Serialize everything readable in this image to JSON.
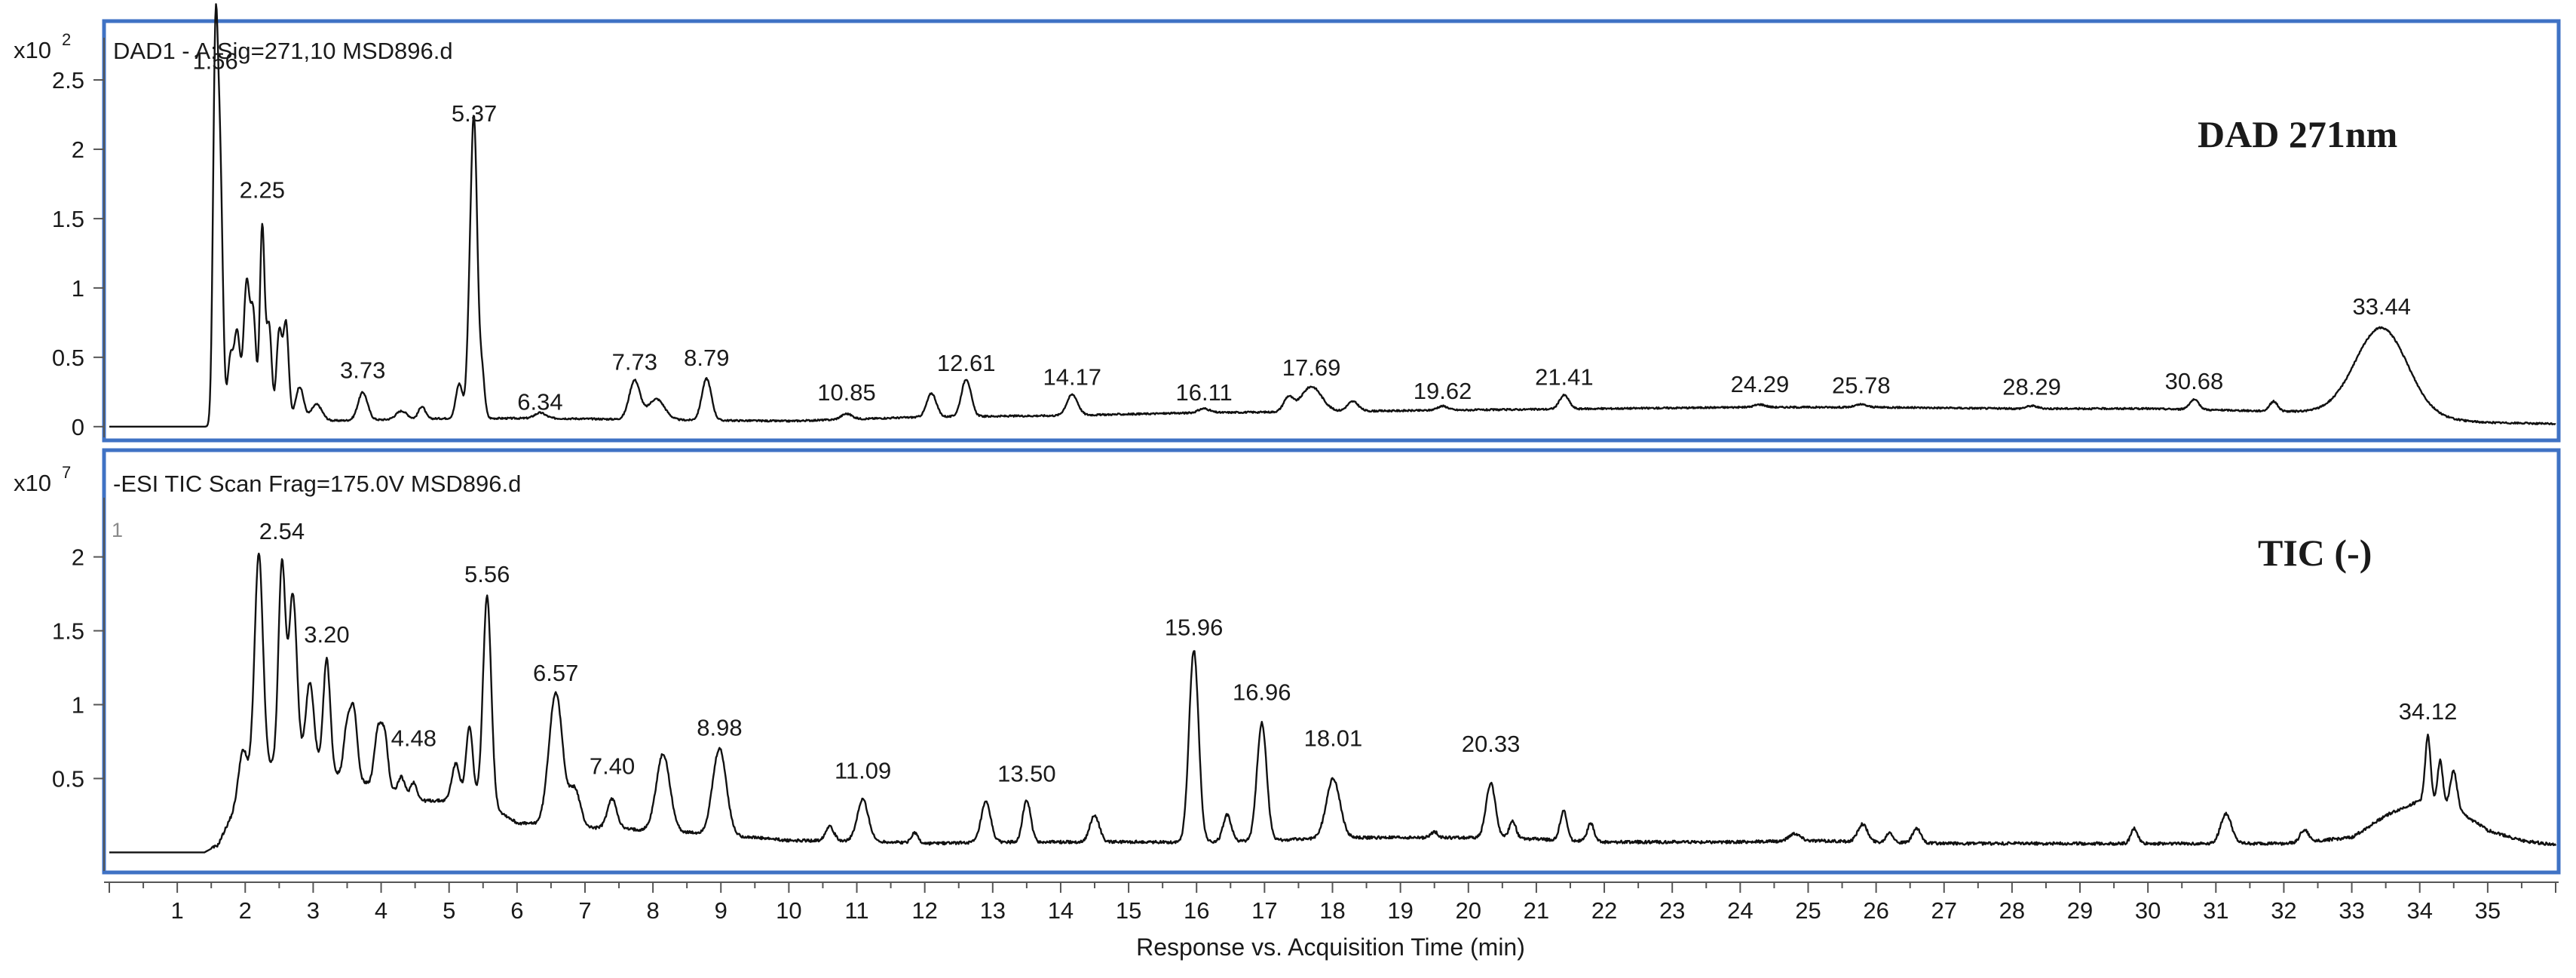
{
  "x_axis": {
    "label": "Response vs. Acquisition Time (min)",
    "range": [
      0,
      36
    ],
    "ticks": [
      1,
      2,
      3,
      4,
      5,
      6,
      7,
      8,
      9,
      10,
      11,
      12,
      13,
      14,
      15,
      16,
      17,
      18,
      19,
      20,
      21,
      22,
      23,
      24,
      25,
      26,
      27,
      28,
      29,
      30,
      31,
      32,
      33,
      34,
      35
    ]
  },
  "chart_data": [
    {
      "type": "line",
      "title": "DAD1 - A:Sig=271,10 MSD896.d",
      "annotation": "DAD 271nm",
      "y_multiplier_label": "x10",
      "y_exponent": "2",
      "ylim": [
        -0.05,
        2.75
      ],
      "y_ticks": [
        "0",
        "0.5",
        "1",
        "1.5",
        "2",
        "2.5"
      ],
      "y_tick_values": [
        0,
        0.5,
        1,
        1.5,
        2,
        2.5
      ],
      "baseline": [
        [
          0,
          0
        ],
        [
          1.45,
          0
        ],
        [
          1.6,
          0.02
        ],
        [
          3,
          0.04
        ],
        [
          5,
          0.06
        ],
        [
          6.5,
          0.06
        ],
        [
          8,
          0.05
        ],
        [
          10,
          0.04
        ],
        [
          12,
          0.07
        ],
        [
          14,
          0.08
        ],
        [
          16,
          0.1
        ],
        [
          18,
          0.11
        ],
        [
          20,
          0.12
        ],
        [
          22,
          0.13
        ],
        [
          24,
          0.14
        ],
        [
          26,
          0.14
        ],
        [
          28,
          0.13
        ],
        [
          30,
          0.13
        ],
        [
          32,
          0.11
        ],
        [
          33,
          0.1
        ],
        [
          34,
          0.06
        ],
        [
          35,
          0.03
        ],
        [
          36,
          0.02
        ]
      ],
      "peaks": [
        {
          "rt": 1.56,
          "h": 2.55,
          "w": 0.035
        },
        {
          "rt": 1.63,
          "h": 1.8,
          "w": 0.04
        },
        {
          "rt": 1.78,
          "h": 0.45,
          "w": 0.04
        },
        {
          "rt": 1.88,
          "h": 0.65,
          "w": 0.045
        },
        {
          "rt": 2.02,
          "h": 1.0,
          "w": 0.045
        },
        {
          "rt": 2.12,
          "h": 0.75,
          "w": 0.04
        },
        {
          "rt": 2.25,
          "h": 1.4,
          "w": 0.035
        },
        {
          "rt": 2.35,
          "h": 0.7,
          "w": 0.04
        },
        {
          "rt": 2.5,
          "h": 0.65,
          "w": 0.04
        },
        {
          "rt": 2.6,
          "h": 0.7,
          "w": 0.04
        },
        {
          "rt": 2.8,
          "h": 0.25,
          "w": 0.06
        },
        {
          "rt": 3.05,
          "h": 0.12,
          "w": 0.08
        },
        {
          "rt": 3.73,
          "h": 0.2,
          "w": 0.07
        },
        {
          "rt": 4.3,
          "h": 0.06,
          "w": 0.08
        },
        {
          "rt": 4.6,
          "h": 0.09,
          "w": 0.05
        },
        {
          "rt": 5.15,
          "h": 0.25,
          "w": 0.05
        },
        {
          "rt": 5.3,
          "h": 0.55,
          "w": 0.04
        },
        {
          "rt": 5.37,
          "h": 2.05,
          "w": 0.045
        },
        {
          "rt": 5.48,
          "h": 0.35,
          "w": 0.04
        },
        {
          "rt": 6.34,
          "h": 0.04,
          "w": 0.08
        },
        {
          "rt": 7.73,
          "h": 0.28,
          "w": 0.08
        },
        {
          "rt": 8.05,
          "h": 0.15,
          "w": 0.12
        },
        {
          "rt": 8.79,
          "h": 0.3,
          "w": 0.07
        },
        {
          "rt": 10.85,
          "h": 0.04,
          "w": 0.08
        },
        {
          "rt": 12.1,
          "h": 0.17,
          "w": 0.07
        },
        {
          "rt": 12.61,
          "h": 0.27,
          "w": 0.07
        },
        {
          "rt": 14.17,
          "h": 0.15,
          "w": 0.08
        },
        {
          "rt": 16.11,
          "h": 0.03,
          "w": 0.08
        },
        {
          "rt": 17.35,
          "h": 0.1,
          "w": 0.07
        },
        {
          "rt": 17.69,
          "h": 0.18,
          "w": 0.15
        },
        {
          "rt": 18.3,
          "h": 0.07,
          "w": 0.08
        },
        {
          "rt": 19.62,
          "h": 0.03,
          "w": 0.08
        },
        {
          "rt": 21.41,
          "h": 0.1,
          "w": 0.07
        },
        {
          "rt": 24.29,
          "h": 0.02,
          "w": 0.08
        },
        {
          "rt": 25.78,
          "h": 0.02,
          "w": 0.08
        },
        {
          "rt": 28.29,
          "h": 0.02,
          "w": 0.08
        },
        {
          "rt": 30.68,
          "h": 0.07,
          "w": 0.07
        },
        {
          "rt": 31.85,
          "h": 0.07,
          "w": 0.06
        },
        {
          "rt": 33.44,
          "h": 0.63,
          "w": 0.38
        }
      ],
      "peak_labels": [
        {
          "rt": 1.56,
          "text": "1.56",
          "y": 2.58
        },
        {
          "rt": 2.25,
          "text": "2.25",
          "y": 1.65
        },
        {
          "rt": 3.73,
          "text": "3.73",
          "y": 0.35
        },
        {
          "rt": 5.37,
          "text": "5.37",
          "y": 2.2
        },
        {
          "rt": 6.34,
          "text": "6.34",
          "y": 0.12
        },
        {
          "rt": 7.73,
          "text": "7.73",
          "y": 0.41
        },
        {
          "rt": 8.79,
          "text": "8.79",
          "y": 0.44
        },
        {
          "rt": 10.85,
          "text": "10.85",
          "y": 0.19
        },
        {
          "rt": 12.61,
          "text": "12.61",
          "y": 0.4
        },
        {
          "rt": 14.17,
          "text": "14.17",
          "y": 0.3
        },
        {
          "rt": 16.11,
          "text": "16.11",
          "y": 0.19
        },
        {
          "rt": 17.69,
          "text": "17.69",
          "y": 0.37
        },
        {
          "rt": 19.62,
          "text": "19.62",
          "y": 0.2
        },
        {
          "rt": 21.41,
          "text": "21.41",
          "y": 0.3
        },
        {
          "rt": 24.29,
          "text": "24.29",
          "y": 0.25
        },
        {
          "rt": 25.78,
          "text": "25.78",
          "y": 0.24
        },
        {
          "rt": 28.29,
          "text": "28.29",
          "y": 0.23
        },
        {
          "rt": 30.68,
          "text": "30.68",
          "y": 0.27
        },
        {
          "rt": 33.44,
          "text": "33.44",
          "y": 0.81
        }
      ]
    },
    {
      "type": "line",
      "title": "-ESI TIC Scan Frag=175.0V MSD896.d",
      "annotation": "TIC (-)",
      "y_multiplier_label": "x10",
      "y_exponent": "7",
      "corner_marker": "1",
      "ylim": [
        -0.1,
        2.35
      ],
      "y_ticks": [
        "0.5",
        "1",
        "1.5",
        "2"
      ],
      "y_tick_values": [
        0.5,
        1,
        1.5,
        2
      ],
      "baseline": [
        [
          0,
          0
        ],
        [
          1.4,
          0
        ],
        [
          1.6,
          0.05
        ],
        [
          1.8,
          0.25
        ],
        [
          2,
          0.55
        ],
        [
          2.5,
          0.6
        ],
        [
          3,
          0.6
        ],
        [
          3.5,
          0.5
        ],
        [
          4,
          0.45
        ],
        [
          4.5,
          0.35
        ],
        [
          5,
          0.35
        ],
        [
          5.5,
          0.35
        ],
        [
          6,
          0.2
        ],
        [
          7,
          0.17
        ],
        [
          8,
          0.15
        ],
        [
          9,
          0.12
        ],
        [
          10,
          0.08
        ],
        [
          11,
          0.08
        ],
        [
          12,
          0.06
        ],
        [
          13,
          0.07
        ],
        [
          14,
          0.07
        ],
        [
          15,
          0.07
        ],
        [
          16,
          0.07
        ],
        [
          17,
          0.08
        ],
        [
          18,
          0.1
        ],
        [
          19,
          0.1
        ],
        [
          20,
          0.1
        ],
        [
          21,
          0.09
        ],
        [
          22,
          0.07
        ],
        [
          23,
          0.07
        ],
        [
          24,
          0.07
        ],
        [
          25,
          0.08
        ],
        [
          26,
          0.07
        ],
        [
          27,
          0.06
        ],
        [
          28,
          0.06
        ],
        [
          29,
          0.06
        ],
        [
          30,
          0.06
        ],
        [
          31,
          0.06
        ],
        [
          32,
          0.06
        ],
        [
          33,
          0.1
        ],
        [
          33.5,
          0.25
        ],
        [
          34,
          0.35
        ],
        [
          34.5,
          0.3
        ],
        [
          35,
          0.15
        ],
        [
          35.5,
          0.08
        ],
        [
          36,
          0.05
        ]
      ],
      "peaks": [
        {
          "rt": 1.95,
          "h": 0.2,
          "w": 0.05
        },
        {
          "rt": 2.2,
          "h": 1.45,
          "w": 0.06
        },
        {
          "rt": 2.54,
          "h": 1.35,
          "w": 0.05
        },
        {
          "rt": 2.7,
          "h": 1.15,
          "w": 0.06
        },
        {
          "rt": 2.95,
          "h": 0.55,
          "w": 0.06
        },
        {
          "rt": 3.2,
          "h": 0.75,
          "w": 0.05
        },
        {
          "rt": 3.5,
          "h": 0.35,
          "w": 0.05
        },
        {
          "rt": 3.6,
          "h": 0.45,
          "w": 0.05
        },
        {
          "rt": 3.95,
          "h": 0.35,
          "w": 0.05
        },
        {
          "rt": 4.05,
          "h": 0.35,
          "w": 0.05
        },
        {
          "rt": 4.3,
          "h": 0.12,
          "w": 0.05
        },
        {
          "rt": 4.48,
          "h": 0.12,
          "w": 0.05
        },
        {
          "rt": 5.1,
          "h": 0.25,
          "w": 0.06
        },
        {
          "rt": 5.3,
          "h": 0.5,
          "w": 0.05
        },
        {
          "rt": 5.56,
          "h": 1.4,
          "w": 0.06
        },
        {
          "rt": 6.57,
          "h": 0.9,
          "w": 0.1
        },
        {
          "rt": 6.85,
          "h": 0.25,
          "w": 0.08
        },
        {
          "rt": 7.4,
          "h": 0.2,
          "w": 0.07
        },
        {
          "rt": 8.15,
          "h": 0.52,
          "w": 0.1
        },
        {
          "rt": 8.98,
          "h": 0.58,
          "w": 0.1
        },
        {
          "rt": 10.6,
          "h": 0.1,
          "w": 0.06
        },
        {
          "rt": 11.09,
          "h": 0.28,
          "w": 0.08
        },
        {
          "rt": 11.85,
          "h": 0.07,
          "w": 0.05
        },
        {
          "rt": 12.9,
          "h": 0.27,
          "w": 0.07
        },
        {
          "rt": 13.5,
          "h": 0.28,
          "w": 0.06
        },
        {
          "rt": 14.5,
          "h": 0.18,
          "w": 0.07
        },
        {
          "rt": 15.96,
          "h": 1.3,
          "w": 0.07
        },
        {
          "rt": 16.45,
          "h": 0.18,
          "w": 0.06
        },
        {
          "rt": 16.96,
          "h": 0.8,
          "w": 0.07
        },
        {
          "rt": 18.01,
          "h": 0.4,
          "w": 0.1
        },
        {
          "rt": 19.5,
          "h": 0.04,
          "w": 0.05
        },
        {
          "rt": 20.33,
          "h": 0.37,
          "w": 0.07
        },
        {
          "rt": 20.65,
          "h": 0.12,
          "w": 0.05
        },
        {
          "rt": 21.4,
          "h": 0.2,
          "w": 0.05
        },
        {
          "rt": 21.8,
          "h": 0.12,
          "w": 0.05
        },
        {
          "rt": 24.8,
          "h": 0.05,
          "w": 0.08
        },
        {
          "rt": 25.8,
          "h": 0.12,
          "w": 0.07
        },
        {
          "rt": 26.2,
          "h": 0.07,
          "w": 0.05
        },
        {
          "rt": 26.6,
          "h": 0.1,
          "w": 0.06
        },
        {
          "rt": 29.8,
          "h": 0.1,
          "w": 0.05
        },
        {
          "rt": 31.15,
          "h": 0.2,
          "w": 0.08
        },
        {
          "rt": 32.3,
          "h": 0.08,
          "w": 0.06
        },
        {
          "rt": 34.12,
          "h": 0.45,
          "w": 0.04
        },
        {
          "rt": 34.3,
          "h": 0.3,
          "w": 0.04
        },
        {
          "rt": 34.5,
          "h": 0.25,
          "w": 0.05
        }
      ],
      "peak_labels": [
        {
          "rt": 2.54,
          "text": "2.54",
          "y": 2.12
        },
        {
          "rt": 3.2,
          "text": "3.20",
          "y": 1.42
        },
        {
          "rt": 4.48,
          "text": "4.48",
          "y": 0.72
        },
        {
          "rt": 5.56,
          "text": "5.56",
          "y": 1.83
        },
        {
          "rt": 6.57,
          "text": "6.57",
          "y": 1.16
        },
        {
          "rt": 7.4,
          "text": "7.40",
          "y": 0.53
        },
        {
          "rt": 8.98,
          "text": "8.98",
          "y": 0.79
        },
        {
          "rt": 11.09,
          "text": "11.09",
          "y": 0.5
        },
        {
          "rt": 13.5,
          "text": "13.50",
          "y": 0.48
        },
        {
          "rt": 15.96,
          "text": "15.96",
          "y": 1.47
        },
        {
          "rt": 16.96,
          "text": "16.96",
          "y": 1.03
        },
        {
          "rt": 18.01,
          "text": "18.01",
          "y": 0.72
        },
        {
          "rt": 20.33,
          "text": "20.33",
          "y": 0.68
        },
        {
          "rt": 34.12,
          "text": "34.12",
          "y": 0.9
        }
      ]
    }
  ]
}
